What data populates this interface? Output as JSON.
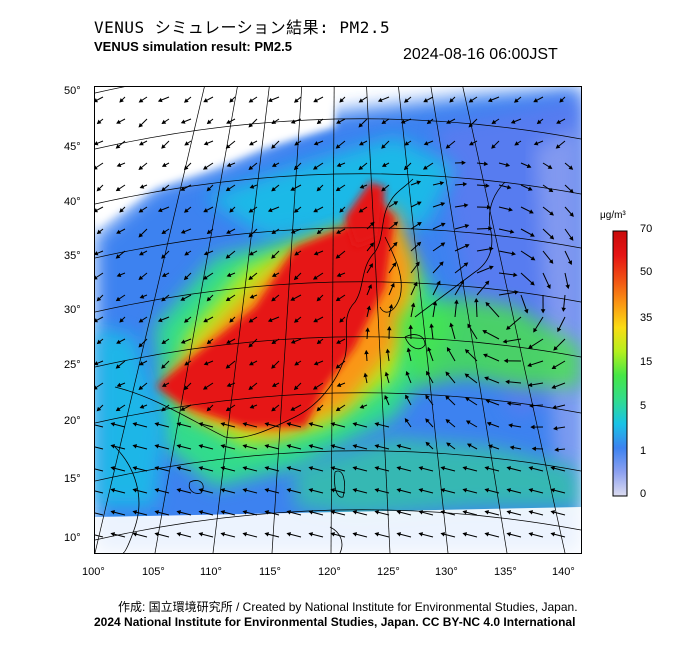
{
  "title_ja": "VENUS シミュレーション結果: PM2.5",
  "title_en": "VENUS simulation result: PM2.5",
  "timestamp": "2024-08-16 06:00JST",
  "lat_labels": [
    "50°",
    "45°",
    "40°",
    "35°",
    "30°",
    "25°",
    "20°",
    "15°",
    "10°"
  ],
  "lon_labels": [
    "100°",
    "105°",
    "110°",
    "115°",
    "120°",
    "125°",
    "130°",
    "135°",
    "140°"
  ],
  "colorbar": {
    "unit": "μg/m³",
    "labels": [
      "70",
      "50",
      "35",
      "15",
      "5",
      "1",
      "0"
    ],
    "colors": [
      "#dcdcf0",
      "#8ca0f0",
      "#3c82f0",
      "#19c3e6",
      "#32dc8c",
      "#46e646",
      "#b4f01e",
      "#fadc14",
      "#fa9614",
      "#f05014",
      "#e61414",
      "#c80a0a"
    ]
  },
  "credit_line1": "作成: 国立環境研究所 / Created by National Institute for Environmental Studies, Japan.",
  "credit_line2": "2024 National Institute for Environmental Studies, Japan. CC BY-NC 4.0 International"
}
